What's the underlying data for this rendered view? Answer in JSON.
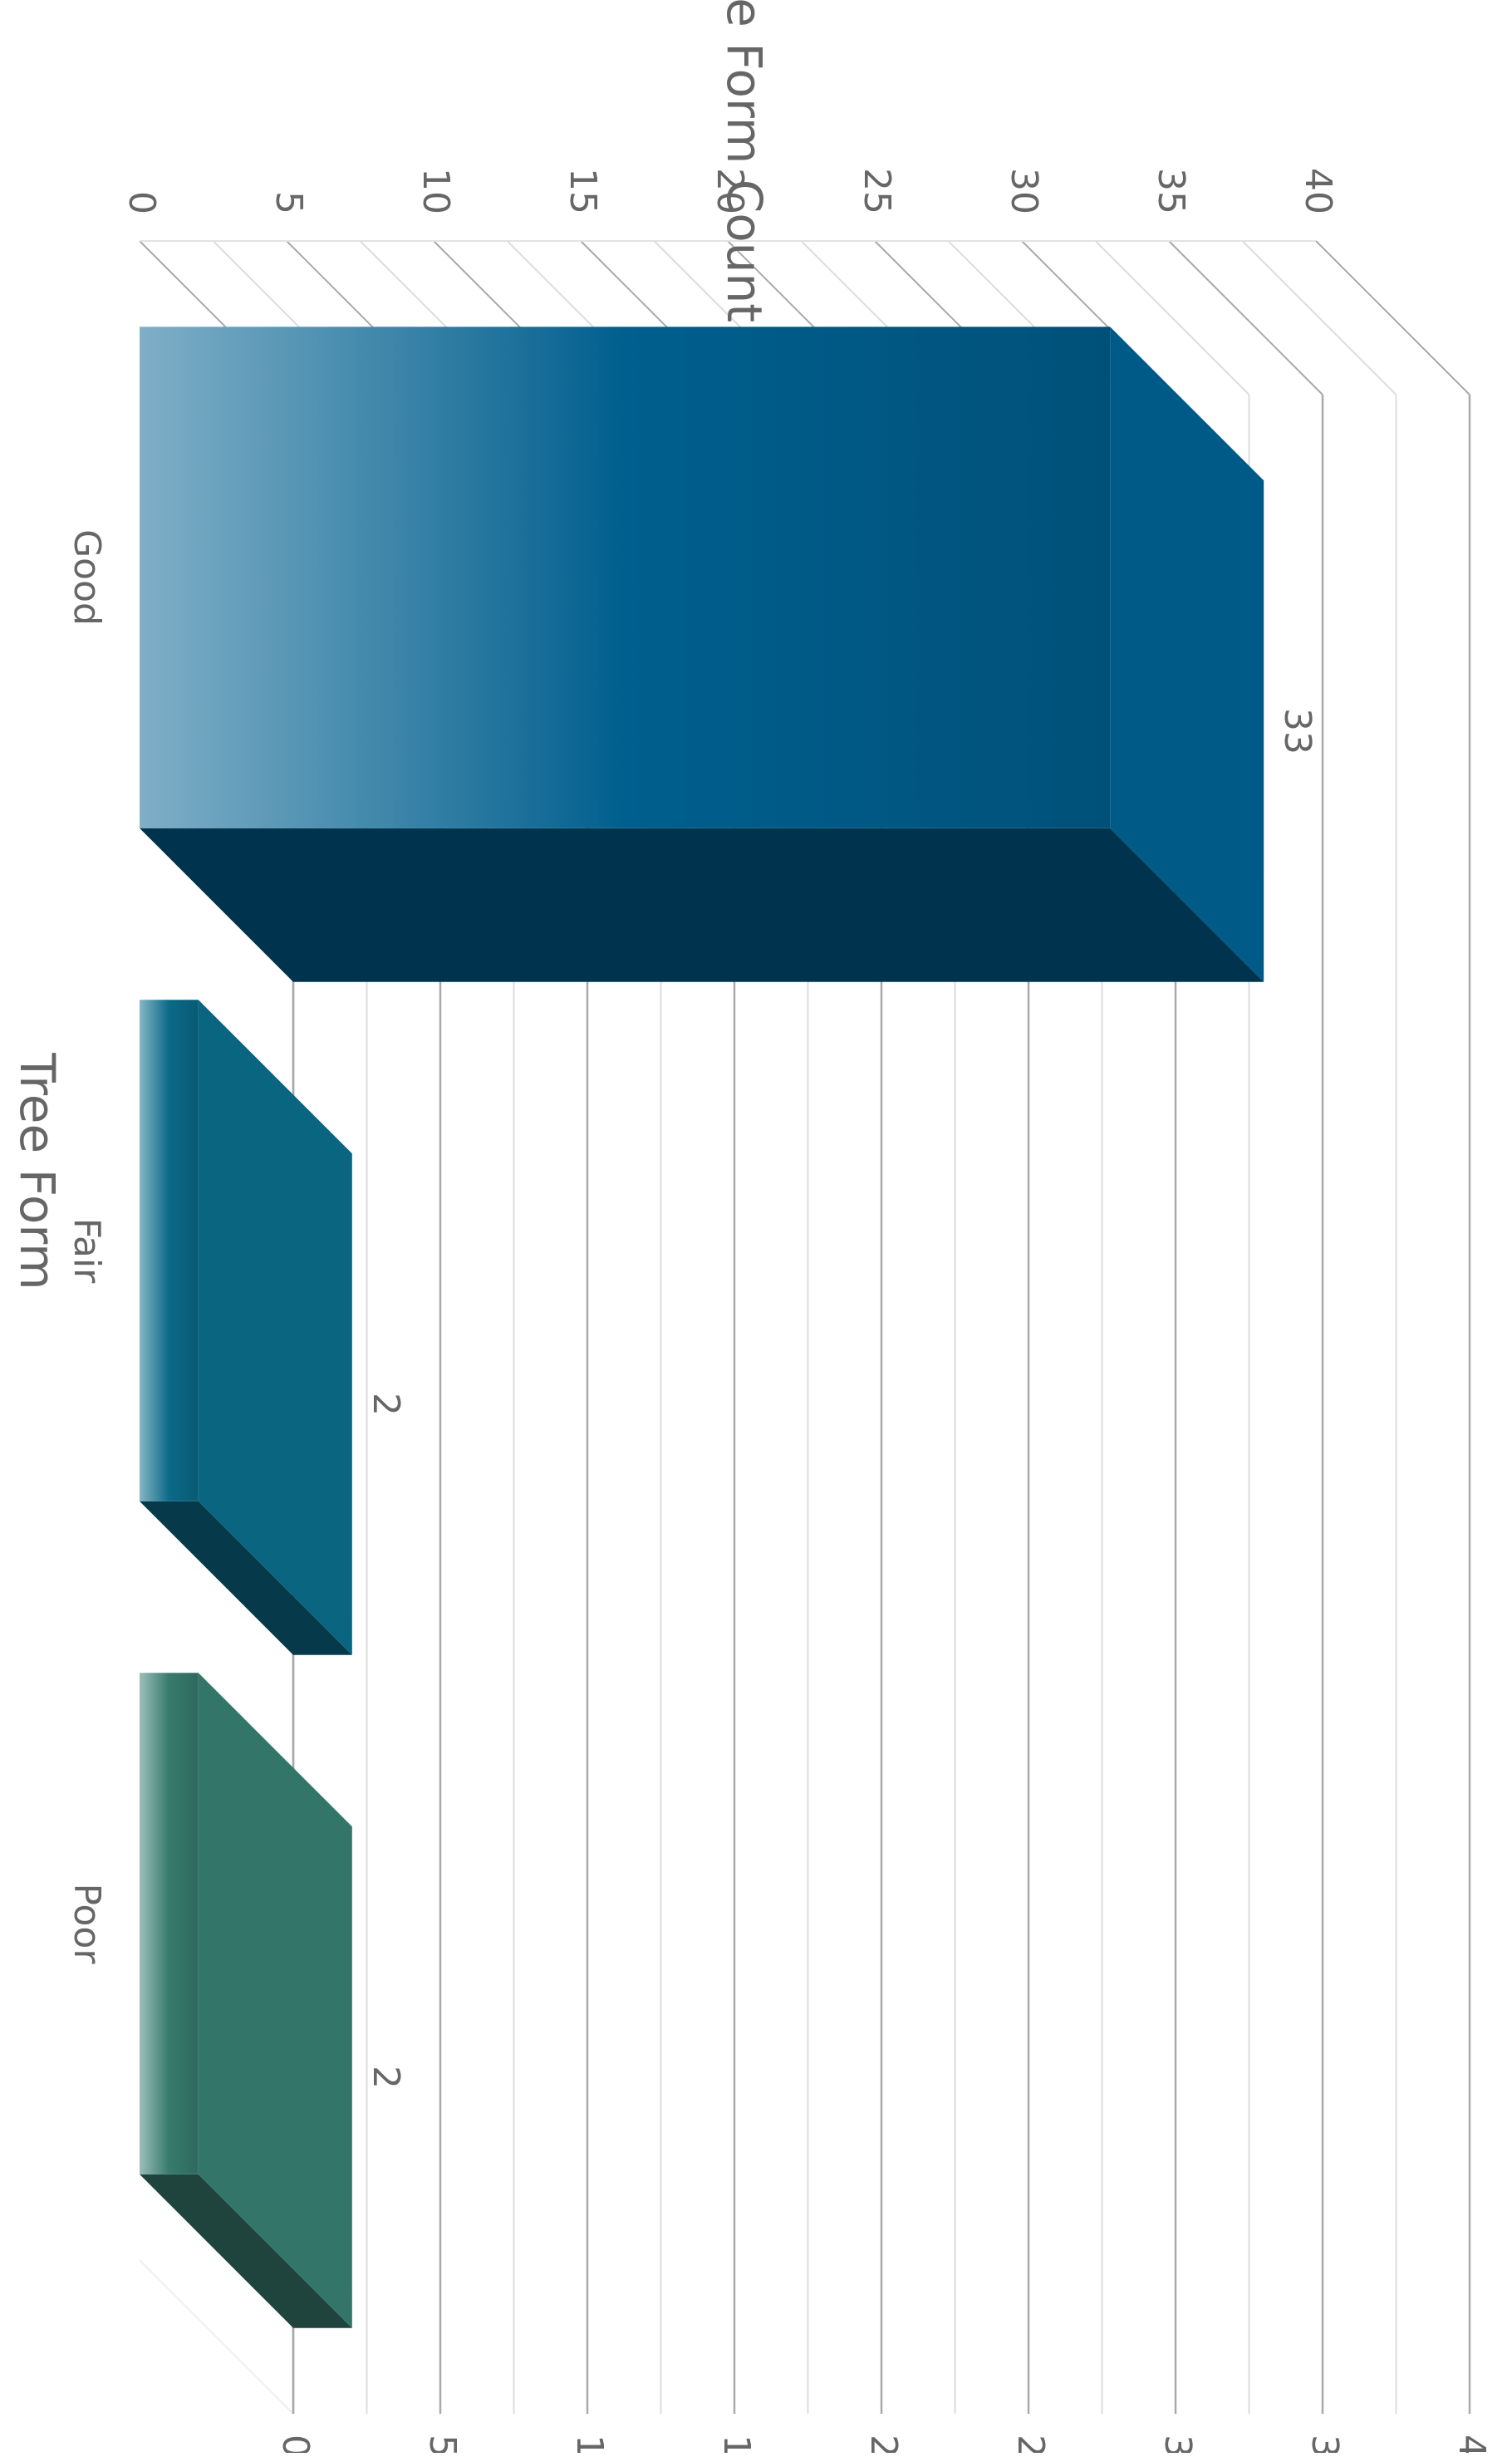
{
  "chart_data": {
    "type": "bar",
    "orientation": "vertical, shown rotated 90° clockwise with 3-D depth",
    "title": "",
    "xlabel": "Tree Form",
    "ylabel": "Tree Form Count",
    "categories": [
      "Good",
      "Fair",
      "Poor"
    ],
    "values": [
      33,
      2,
      2
    ],
    "data_labels": [
      "33",
      "2",
      "2"
    ],
    "ylim": [
      0,
      40
    ],
    "y_ticks": [
      "0",
      "5",
      "10",
      "15",
      "20",
      "25",
      "30",
      "35",
      "40"
    ],
    "grid": true,
    "legend": "none",
    "colors": [
      "#005f8e",
      "#0a6a88",
      "#377b6e"
    ]
  }
}
